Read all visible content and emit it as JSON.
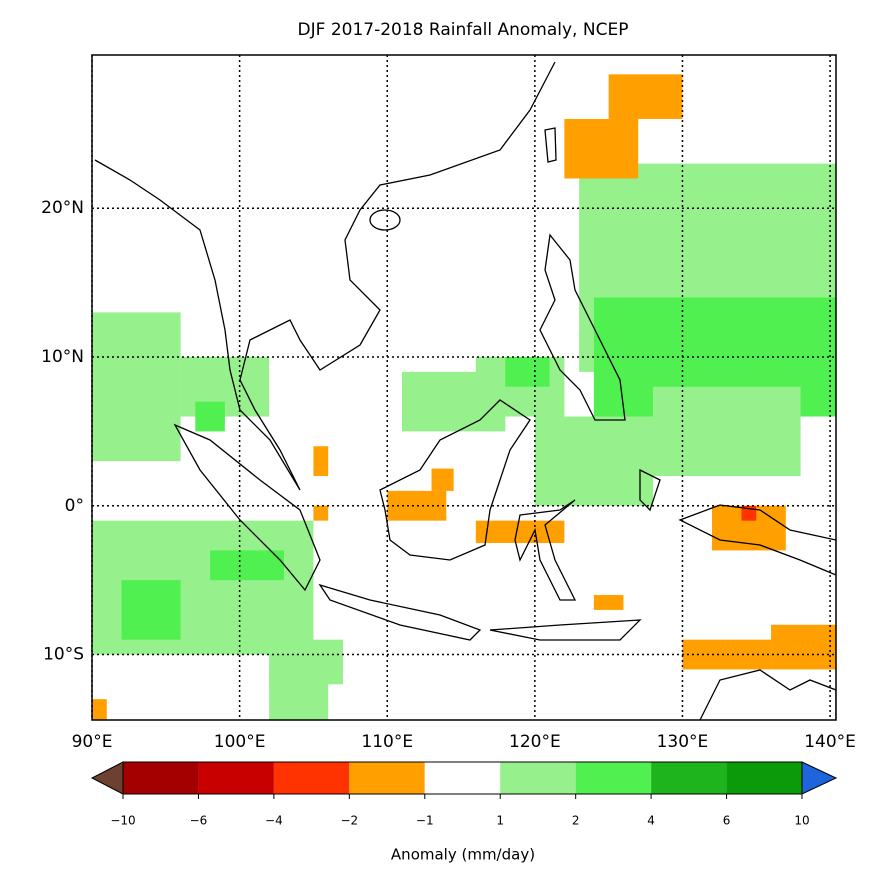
{
  "chart_data": {
    "type": "map",
    "title": "DJF 2017-2018 Rainfall Anomaly, NCEP",
    "xlim": [
      90,
      140.4
    ],
    "ylim": [
      -14.4,
      30.3
    ],
    "xticks": [
      {
        "value": 90,
        "label": "90°E"
      },
      {
        "value": 100,
        "label": "100°E"
      },
      {
        "value": 110,
        "label": "110°E"
      },
      {
        "value": 120,
        "label": "120°E"
      },
      {
        "value": 130,
        "label": "130°E"
      },
      {
        "value": 140,
        "label": "140°E"
      }
    ],
    "yticks": [
      {
        "value": -10,
        "label": "10°S"
      },
      {
        "value": 0,
        "label": "0°"
      },
      {
        "value": 10,
        "label": "10°N"
      },
      {
        "value": 20,
        "label": "20°N"
      }
    ],
    "grid": true,
    "patches": [
      {
        "lon": [
          123,
          140.4
        ],
        "lat": [
          9,
          23
        ],
        "value": 1.5
      },
      {
        "lon": [
          124,
          140.4
        ],
        "lat": [
          6,
          14
        ],
        "value": 3
      },
      {
        "lon": [
          90,
          96
        ],
        "lat": [
          3,
          13
        ],
        "value": 1.5
      },
      {
        "lon": [
          96,
          102
        ],
        "lat": [
          6,
          10
        ],
        "value": 1.5
      },
      {
        "lon": [
          97,
          99
        ],
        "lat": [
          5,
          7
        ],
        "value": 3
      },
      {
        "lon": [
          90,
          105
        ],
        "lat": [
          -10,
          -1
        ],
        "value": 1.5
      },
      {
        "lon": [
          92,
          96
        ],
        "lat": [
          -9,
          -5
        ],
        "value": 3
      },
      {
        "lon": [
          98,
          103
        ],
        "lat": [
          -5,
          -3
        ],
        "value": 3
      },
      {
        "lon": [
          102,
          107
        ],
        "lat": [
          -12,
          -9
        ],
        "value": 1.5
      },
      {
        "lon": [
          102,
          106
        ],
        "lat": [
          -14.4,
          -11
        ],
        "value": 1.5
      },
      {
        "lon": [
          111,
          118
        ],
        "lat": [
          5,
          9
        ],
        "value": 1.5
      },
      {
        "lon": [
          116,
          122
        ],
        "lat": [
          6,
          10
        ],
        "value": 1.5
      },
      {
        "lon": [
          118,
          121
        ],
        "lat": [
          8,
          10
        ],
        "value": 3
      },
      {
        "lon": [
          120,
          128
        ],
        "lat": [
          0,
          6
        ],
        "value": 1.5
      },
      {
        "lon": [
          128,
          138
        ],
        "lat": [
          2,
          8
        ],
        "value": 1.5
      },
      {
        "lon": [
          122,
          127
        ],
        "lat": [
          22,
          26
        ],
        "value": -1.5
      },
      {
        "lon": [
          125,
          130
        ],
        "lat": [
          26,
          29
        ],
        "value": -1.5
      },
      {
        "lon": [
          110,
          114
        ],
        "lat": [
          -1,
          1
        ],
        "value": -1.5
      },
      {
        "lon": [
          113,
          114.5
        ],
        "lat": [
          1,
          2.5
        ],
        "value": -1.5
      },
      {
        "lon": [
          116,
          122
        ],
        "lat": [
          -2.5,
          -1
        ],
        "value": -1.5
      },
      {
        "lon": [
          124,
          126
        ],
        "lat": [
          -7,
          -6
        ],
        "value": -1.5
      },
      {
        "lon": [
          105,
          106
        ],
        "lat": [
          2,
          4
        ],
        "value": -1.5
      },
      {
        "lon": [
          105,
          106
        ],
        "lat": [
          -1,
          0
        ],
        "value": -1.5
      },
      {
        "lon": [
          132,
          137
        ],
        "lat": [
          -3,
          0
        ],
        "value": -1.5
      },
      {
        "lon": [
          134,
          135
        ],
        "lat": [
          -1,
          0
        ],
        "value": -3
      },
      {
        "lon": [
          130,
          136
        ],
        "lat": [
          -11,
          -9
        ],
        "value": -1.5
      },
      {
        "lon": [
          136,
          140.4
        ],
        "lat": [
          -11,
          -8
        ],
        "value": -1.5
      },
      {
        "lon": [
          90,
          91
        ],
        "lat": [
          -14.4,
          -13
        ],
        "value": -1.5
      }
    ],
    "colorbar": {
      "label": "Anomaly (mm/day)",
      "ticks": [
        {
          "value": -10,
          "label": "−10"
        },
        {
          "value": -6,
          "label": "−6"
        },
        {
          "value": -4,
          "label": "−4"
        },
        {
          "value": -2,
          "label": "−2"
        },
        {
          "value": -1,
          "label": "−1"
        },
        1,
        2,
        4,
        6,
        10
      ],
      "colors": [
        "#a50000",
        "#c80000",
        "#ff3300",
        "#ffa000",
        "#ffffff",
        "#96f08c",
        "#50f050",
        "#1eb41e",
        "#0a9a0a"
      ],
      "under": "#6e4030",
      "over": "#1e64dc"
    }
  }
}
